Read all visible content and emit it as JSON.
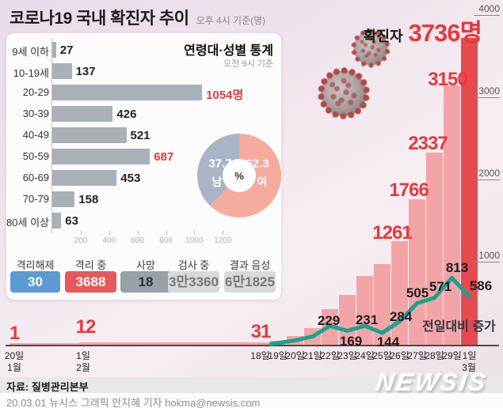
{
  "header": {
    "title": "코로나19 국내 확진자 추이",
    "subtitle": "오후 4시 기준(명)"
  },
  "age_panel": {
    "title": "연령대·성별 통계",
    "subtitle": "오전 9시 기준"
  },
  "donut": {
    "female_value": "62.3",
    "female_label": "여",
    "male_value": "37.7",
    "male_label": "남",
    "center": "%"
  },
  "status_boxes": [
    {
      "label": "격리해제",
      "value": "30",
      "bg": "#5b9ad2",
      "fg": "#ffffff"
    },
    {
      "label": "격리 중",
      "value": "3688",
      "bg": "#e8575a",
      "fg": "#ffffff"
    },
    {
      "label": "사망",
      "value": "18",
      "bg": "#97a1a7",
      "fg": "#2e3338"
    },
    {
      "label": "검사 중",
      "value": "3만3360",
      "bg": "#d9d9db",
      "fg": "#77797c"
    },
    {
      "label": "결과 음성",
      "value": "6만1825",
      "bg": "#d9d9db",
      "fg": "#77797c"
    }
  ],
  "chart_data": [
    {
      "id": "age",
      "type": "bar",
      "title": "연령대·성별 통계",
      "subtitle": "오전 9시 기준",
      "categories": [
        "9세 이하",
        "10-19세",
        "20-29",
        "30-39",
        "40-49",
        "50-59",
        "60-69",
        "70-79",
        "80세 이상"
      ],
      "values": [
        27,
        137,
        1054,
        426,
        521,
        687,
        453,
        158,
        63
      ],
      "value_labels": [
        "27",
        "137",
        "1054명",
        "426",
        "521",
        "687",
        "453",
        "158",
        "63"
      ],
      "highlight_red": [
        2,
        5
      ],
      "xticks": [
        200,
        400,
        600,
        800,
        1000,
        1200
      ],
      "xlim": [
        0,
        1200
      ],
      "bar_color": "#a9b1b8",
      "highlight_color": "#e8383d"
    },
    {
      "id": "gender",
      "type": "pie",
      "center_label": "%",
      "slices": [
        {
          "label": "여",
          "value": 62.3,
          "color": "#f5ab9e"
        },
        {
          "label": "남",
          "value": 37.7,
          "color": "#a9b5c7"
        }
      ]
    },
    {
      "id": "daily",
      "type": "bar+line",
      "title": "코로나19 국내 확진자 추이",
      "unit_note": "오후 4시 기준(명)",
      "early": {
        "dates": [
          "20일",
          "1일"
        ],
        "months": [
          "1월",
          "2월"
        ],
        "values": [
          1,
          12
        ]
      },
      "categories": [
        "18일",
        "19일",
        "20일",
        "21일",
        "22일",
        "23일",
        "24일",
        "25일",
        "26일",
        "27일",
        "28일",
        "29일",
        "1일"
      ],
      "end_month": "3월",
      "series": [
        {
          "name": "확진자",
          "type": "bar",
          "values": [
            31,
            51,
            104,
            204,
            433,
            602,
            833,
            977,
            1261,
            1766,
            2337,
            3150,
            3736
          ]
        },
        {
          "name": "전일대비 증가",
          "type": "line",
          "values": [
            null,
            20,
            53,
            100,
            229,
            169,
            231,
            144,
            284,
            505,
            571,
            813,
            586
          ]
        }
      ],
      "milestone_labels": [
        "1",
        "12",
        "31",
        "1261",
        "1766",
        "2337",
        "3150"
      ],
      "line_labels": [
        "229",
        "169",
        "231",
        "144",
        "284",
        "505",
        "571",
        "813",
        "586"
      ],
      "headline": {
        "label": "확진자",
        "value": "3736명"
      },
      "annotation": "전일대비 증가",
      "ylim": [
        0,
        4000
      ],
      "yticks": [
        1000,
        2000,
        3000,
        4000
      ],
      "bar_color": "#f3a4a6",
      "last_bar_color": "#e54a4f",
      "line_color": "#17a38c",
      "label_color": "#e8383d"
    }
  ],
  "footer": {
    "source": "자료: 질병관리본부",
    "credit": "20.03.01 뉴시스 그래픽 안지혜 기자 hokma@newsis.com",
    "logo": "NEWSIS"
  }
}
